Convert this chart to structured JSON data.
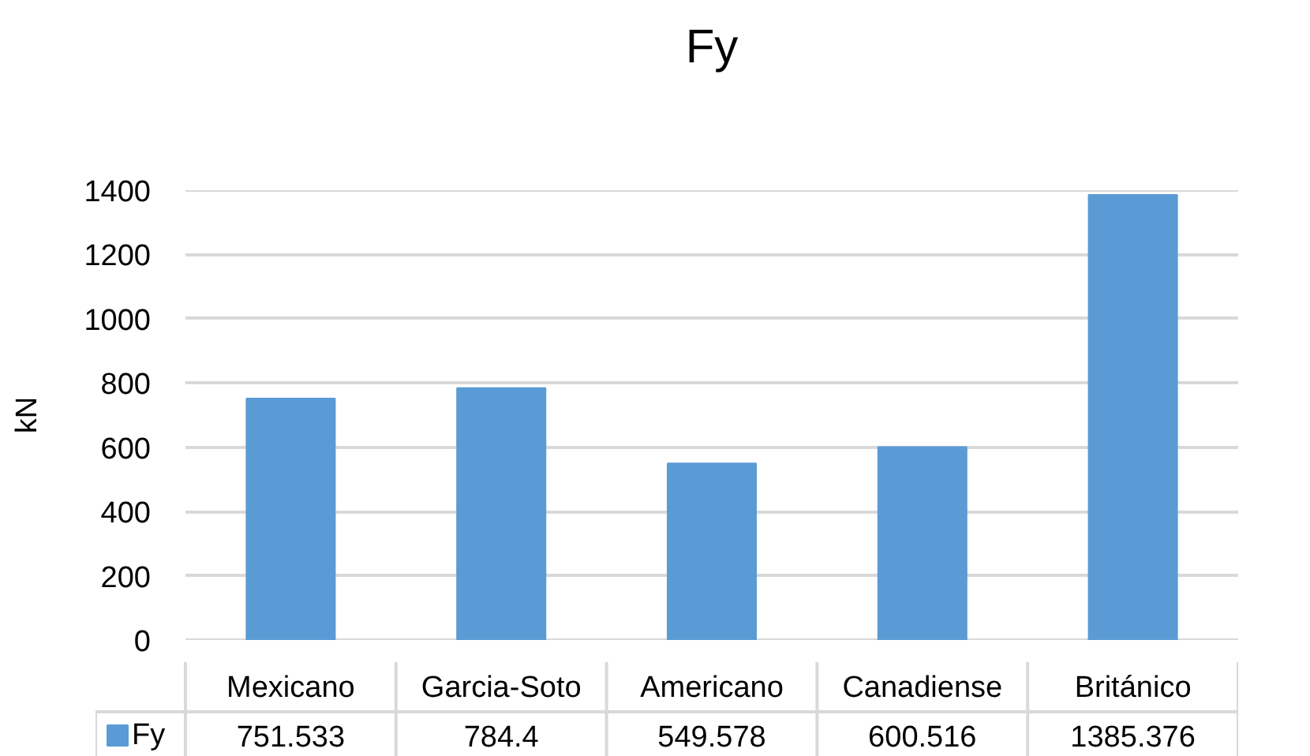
{
  "chart_data": {
    "type": "bar",
    "title": "Fy",
    "ylabel": "kN",
    "categories": [
      "Mexicano",
      "Garcia-Soto",
      "Americano",
      "Canadiense",
      "Británico"
    ],
    "series": [
      {
        "name": "Fy",
        "color": "#5b9bd5",
        "values": [
          751.533,
          784.4,
          549.578,
          600.516,
          1385.376
        ]
      }
    ],
    "ylim": [
      0,
      1400
    ],
    "yticks": [
      0,
      200,
      400,
      600,
      800,
      1000,
      1200,
      1400
    ],
    "grid": "y",
    "legend": "bottom",
    "data_labels": true
  }
}
